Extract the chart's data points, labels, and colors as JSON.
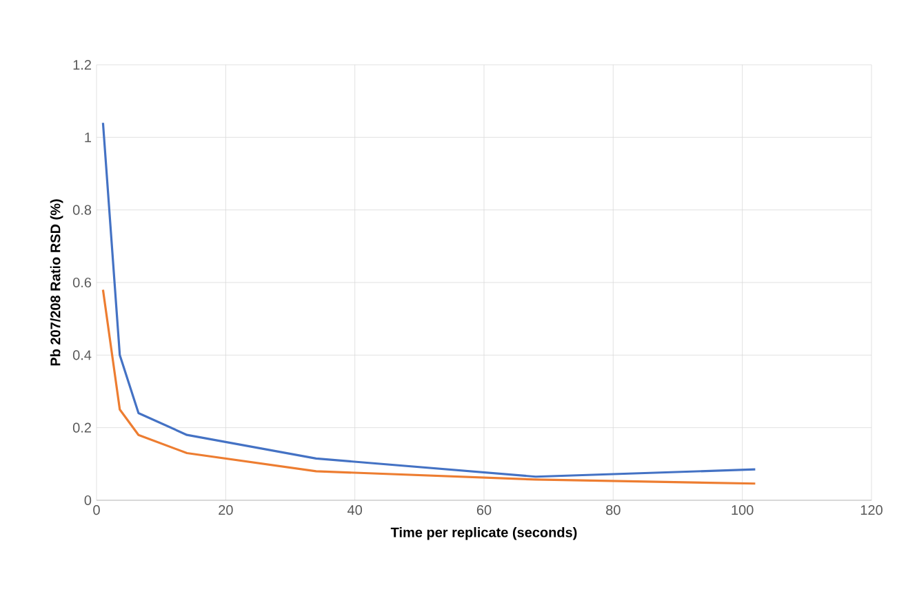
{
  "chart_data": {
    "type": "line",
    "xlabel": "Time per replicate (seconds)",
    "ylabel": "Pb 207/208 Ratio RSD (%)",
    "xlim": [
      0,
      120
    ],
    "ylim": [
      0,
      1.2
    ],
    "xticks": [
      0,
      20,
      40,
      60,
      80,
      100,
      120
    ],
    "yticks": [
      0,
      0.2,
      0.4,
      0.6,
      0.8,
      1,
      1.2
    ],
    "grid": true,
    "marker": "none",
    "line_style": "solid",
    "series": [
      {
        "color": "#4472c4",
        "x": [
          1,
          3.6,
          6.5,
          14,
          34,
          68,
          102
        ],
        "values": [
          1.04,
          0.4,
          0.24,
          0.18,
          0.115,
          0.065,
          0.085
        ]
      },
      {
        "color": "#ed7d31",
        "x": [
          1,
          3.6,
          6.5,
          14,
          34,
          68,
          102
        ],
        "values": [
          0.58,
          0.25,
          0.18,
          0.13,
          0.08,
          0.057,
          0.046
        ]
      }
    ]
  }
}
